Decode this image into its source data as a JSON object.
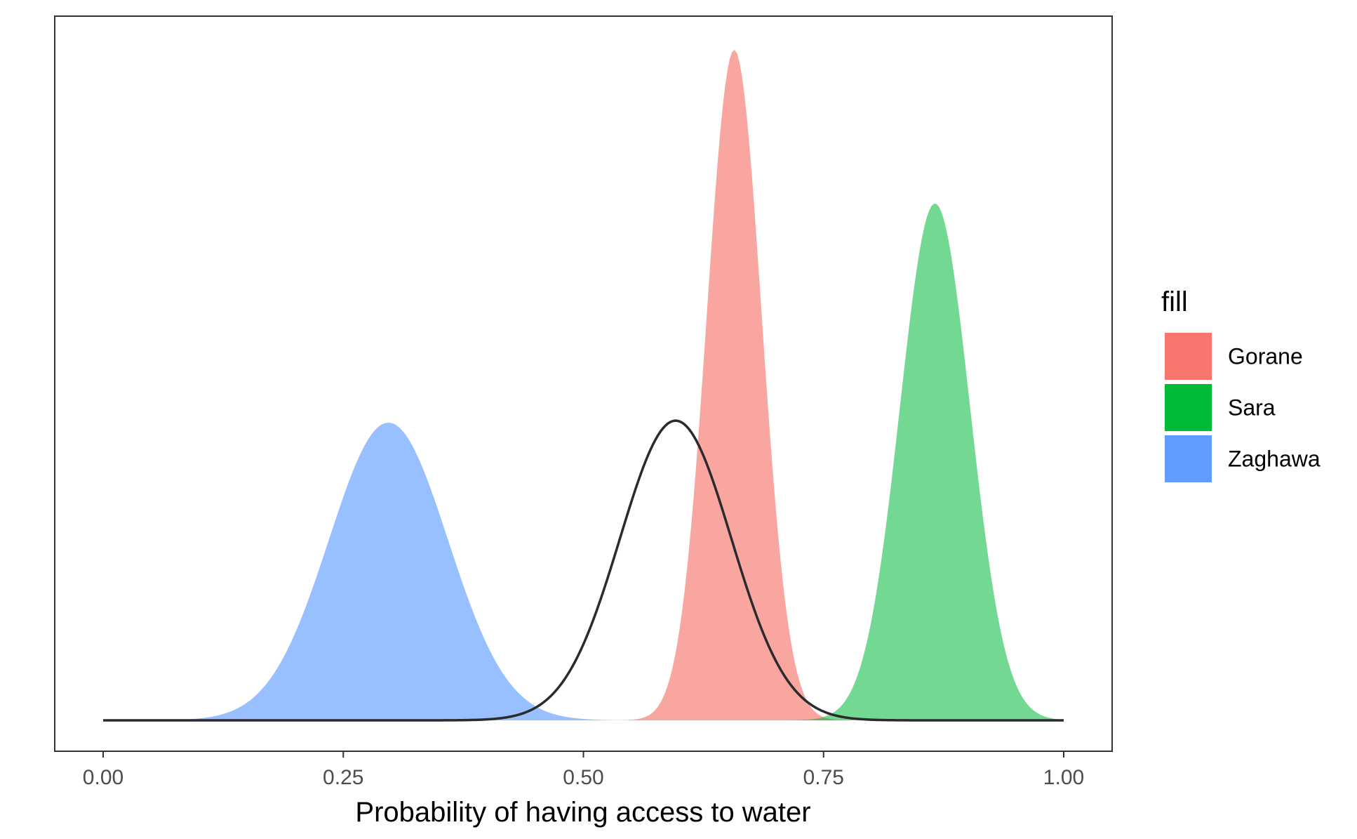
{
  "chart_data": {
    "type": "area",
    "title": "",
    "xlabel": "Probability of having access to water",
    "ylabel": "",
    "xlim": [
      0,
      1
    ],
    "y_axis_shown": false,
    "grid": false,
    "x_ticks": [
      "0.00",
      "0.25",
      "0.50",
      "0.75",
      "1.00"
    ],
    "x_tick_values": [
      0,
      0.25,
      0.5,
      0.75,
      1.0
    ],
    "legend": {
      "title": "fill",
      "placement": "right",
      "entries": [
        "Gorane",
        "Sara",
        "Zaghawa"
      ]
    },
    "series": [
      {
        "name": "Zaghawa",
        "kind": "filled-density",
        "mean": 0.297,
        "sd": 0.062,
        "peak_density": 0.444,
        "color": "#619CFF",
        "opacity": 0.65
      },
      {
        "name": "Gorane",
        "kind": "filled-density",
        "mean": 0.657,
        "sd": 0.0285,
        "peak_density": 1.0,
        "color": "#F8766D",
        "opacity": 0.65
      },
      {
        "name": "Sara",
        "kind": "filled-density",
        "mean": 0.866,
        "sd": 0.0365,
        "peak_density": 0.771,
        "color": "#00BA38",
        "opacity": 0.55
      },
      {
        "kind": "density-line",
        "mean": 0.596,
        "sd": 0.058,
        "peak_density": 0.447,
        "color": "#2b2b2b"
      }
    ],
    "legend_colors": [
      "#F8766D",
      "#00BA38",
      "#619CFF"
    ]
  }
}
